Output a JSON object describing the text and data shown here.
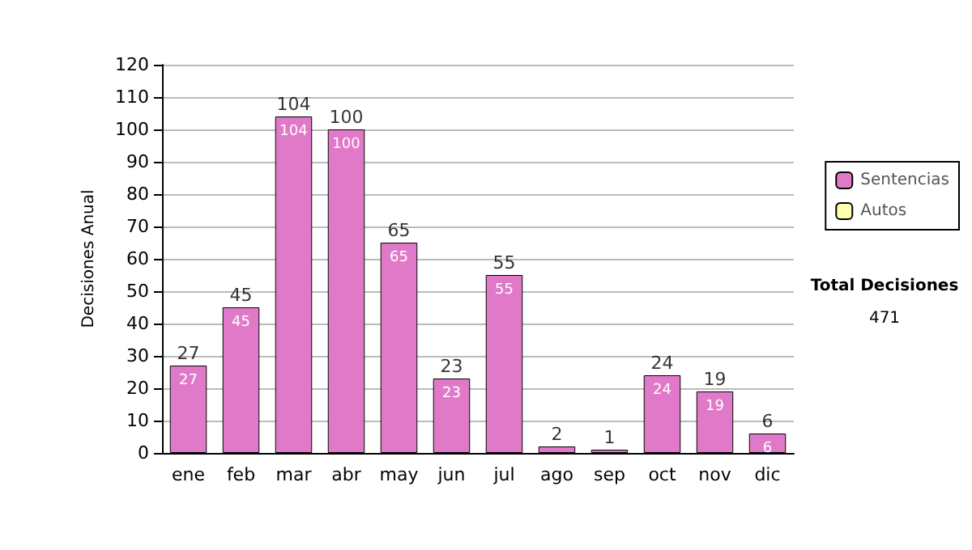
{
  "chart_data": {
    "type": "bar",
    "ylabel": "Decisiones Anual",
    "categories": [
      "ene",
      "feb",
      "mar",
      "abr",
      "may",
      "jun",
      "jul",
      "ago",
      "sep",
      "oct",
      "nov",
      "dic"
    ],
    "series": [
      {
        "name": "Sentencias",
        "color": "#e07ac8",
        "values": [
          27,
          45,
          104,
          100,
          65,
          23,
          55,
          2,
          1,
          24,
          19,
          6
        ],
        "value_labels": [
          "27",
          "45",
          "104",
          "100",
          "65",
          "23",
          "55",
          null,
          null,
          "24",
          "19",
          "6"
        ]
      },
      {
        "name": "Autos",
        "color": "#ffffb0",
        "values": [
          null,
          null,
          null,
          null,
          null,
          null,
          null,
          null,
          null,
          null,
          null,
          null
        ]
      }
    ],
    "stacked": true,
    "totals": [
      "27",
      "45",
      "104",
      "100",
      "65",
      "23",
      "55",
      "2",
      "1",
      "24",
      "19",
      "6"
    ],
    "ylim": [
      0,
      120
    ],
    "yticks": [
      0,
      10,
      20,
      30,
      40,
      50,
      60,
      70,
      80,
      90,
      100,
      110,
      120
    ],
    "grid": "y",
    "legend": "right",
    "annotations": [
      "Total Decisiones",
      "471"
    ]
  }
}
